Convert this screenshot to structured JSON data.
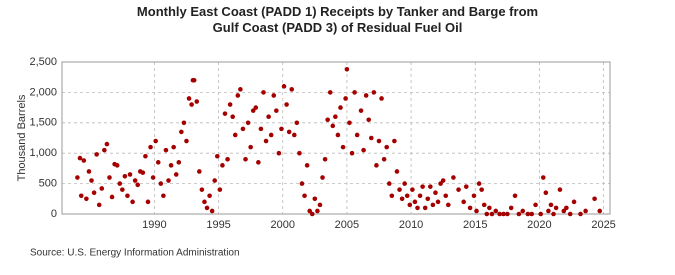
{
  "chart_data": {
    "type": "scatter",
    "title": "Monthly East Coast (PADD 1) Receipts by Tanker and Barge from Gulf Coast (PADD 3) of Residual Fuel Oil",
    "y_label": "Thousand Barrels",
    "source": "Source: U.S. Energy Information Administration",
    "color": "#a50000",
    "grid": true,
    "xlim": [
      1982.8,
      2025.5
    ],
    "ylim": [
      0,
      2500
    ],
    "xticks": [
      1990,
      1995,
      2000,
      2005,
      2010,
      2015,
      2020,
      2025
    ],
    "yticks": [
      0,
      500,
      {
        "value": 1000,
        "label": "1,000"
      },
      {
        "value": 1500,
        "label": "1,500"
      },
      {
        "value": 2000,
        "label": "2,000"
      },
      {
        "value": 2500,
        "label": "2,500"
      }
    ],
    "x": [
      1984.0,
      1984.2,
      1984.3,
      1984.5,
      1984.7,
      1984.9,
      1985.1,
      1985.3,
      1985.5,
      1985.7,
      1985.9,
      1986.1,
      1986.3,
      1986.5,
      1986.7,
      1986.9,
      1987.1,
      1987.3,
      1987.5,
      1987.7,
      1987.9,
      1988.1,
      1988.3,
      1988.5,
      1988.7,
      1988.9,
      1989.1,
      1989.3,
      1989.5,
      1989.7,
      1989.9,
      1990.1,
      1990.3,
      1990.5,
      1990.7,
      1990.9,
      1991.1,
      1991.3,
      1991.5,
      1991.7,
      1991.9,
      1992.1,
      1992.3,
      1992.5,
      1992.7,
      1992.9,
      1993.0,
      1993.1,
      1993.3,
      1993.5,
      1993.7,
      1993.9,
      1994.1,
      1994.3,
      1994.5,
      1994.7,
      1994.9,
      1995.1,
      1995.3,
      1995.5,
      1995.7,
      1995.9,
      1996.1,
      1996.3,
      1996.5,
      1996.7,
      1996.9,
      1997.1,
      1997.3,
      1997.5,
      1997.7,
      1997.9,
      1998.1,
      1998.3,
      1998.5,
      1998.7,
      1998.9,
      1999.1,
      1999.3,
      1999.5,
      1999.7,
      1999.9,
      2000.1,
      2000.3,
      2000.5,
      2000.7,
      2000.9,
      2001.1,
      2001.3,
      2001.5,
      2001.7,
      2001.9,
      2002.1,
      2002.3,
      2002.5,
      2002.7,
      2002.9,
      2003.1,
      2003.3,
      2003.5,
      2003.7,
      2003.9,
      2004.1,
      2004.3,
      2004.5,
      2004.7,
      2004.9,
      2005.0,
      2005.2,
      2005.4,
      2005.6,
      2005.8,
      2006.1,
      2006.3,
      2006.5,
      2006.7,
      2006.9,
      2007.1,
      2007.3,
      2007.5,
      2007.7,
      2007.9,
      2008.1,
      2008.3,
      2008.5,
      2008.7,
      2008.9,
      2009.1,
      2009.3,
      2009.5,
      2009.7,
      2009.9,
      2010.1,
      2010.3,
      2010.5,
      2010.7,
      2010.9,
      2011.1,
      2011.3,
      2011.5,
      2011.7,
      2011.9,
      2012.1,
      2012.3,
      2012.5,
      2012.7,
      2012.9,
      2013.3,
      2013.7,
      2014.1,
      2014.3,
      2014.6,
      2014.9,
      2015.1,
      2015.3,
      2015.5,
      2015.7,
      2015.9,
      2016.1,
      2016.3,
      2016.6,
      2016.9,
      2017.2,
      2017.5,
      2017.8,
      2018.1,
      2018.4,
      2018.7,
      2019.1,
      2019.4,
      2019.7,
      2020.1,
      2020.3,
      2020.5,
      2020.7,
      2020.9,
      2021.1,
      2021.3,
      2021.6,
      2021.9,
      2022.1,
      2022.4,
      2022.7,
      2023.2,
      2023.6,
      2024.3,
      2024.7
    ],
    "values": [
      600,
      920,
      300,
      880,
      250,
      700,
      550,
      350,
      980,
      150,
      420,
      1050,
      1150,
      600,
      280,
      820,
      800,
      500,
      400,
      620,
      300,
      650,
      200,
      550,
      480,
      700,
      680,
      950,
      200,
      1100,
      600,
      1200,
      850,
      500,
      300,
      1050,
      550,
      800,
      1100,
      650,
      850,
      1350,
      1500,
      1200,
      1900,
      1800,
      2200,
      2200,
      1850,
      700,
      400,
      200,
      100,
      300,
      50,
      550,
      950,
      400,
      800,
      1650,
      900,
      1800,
      1600,
      1300,
      1950,
      2050,
      1400,
      900,
      1500,
      1100,
      1700,
      1750,
      850,
      1400,
      2000,
      1200,
      1600,
      1300,
      1950,
      1700,
      1000,
      1400,
      2100,
      1800,
      1350,
      2050,
      1300,
      1500,
      1000,
      500,
      300,
      800,
      50,
      0,
      250,
      50,
      150,
      600,
      900,
      1550,
      2000,
      1450,
      1600,
      1300,
      1750,
      1100,
      1900,
      2380,
      1500,
      1000,
      2000,
      1300,
      1700,
      1050,
      1950,
      1550,
      1250,
      2000,
      800,
      1200,
      1900,
      900,
      1100,
      500,
      300,
      1200,
      700,
      400,
      250,
      500,
      300,
      150,
      400,
      200,
      100,
      300,
      450,
      100,
      250,
      450,
      150,
      350,
      200,
      500,
      550,
      300,
      150,
      600,
      400,
      200,
      450,
      100,
      300,
      50,
      500,
      400,
      150,
      0,
      100,
      0,
      50,
      0,
      0,
      0,
      100,
      300,
      0,
      50,
      0,
      0,
      150,
      0,
      600,
      350,
      50,
      150,
      0,
      100,
      400,
      50,
      100,
      0,
      200,
      0,
      50,
      250,
      50
    ]
  }
}
